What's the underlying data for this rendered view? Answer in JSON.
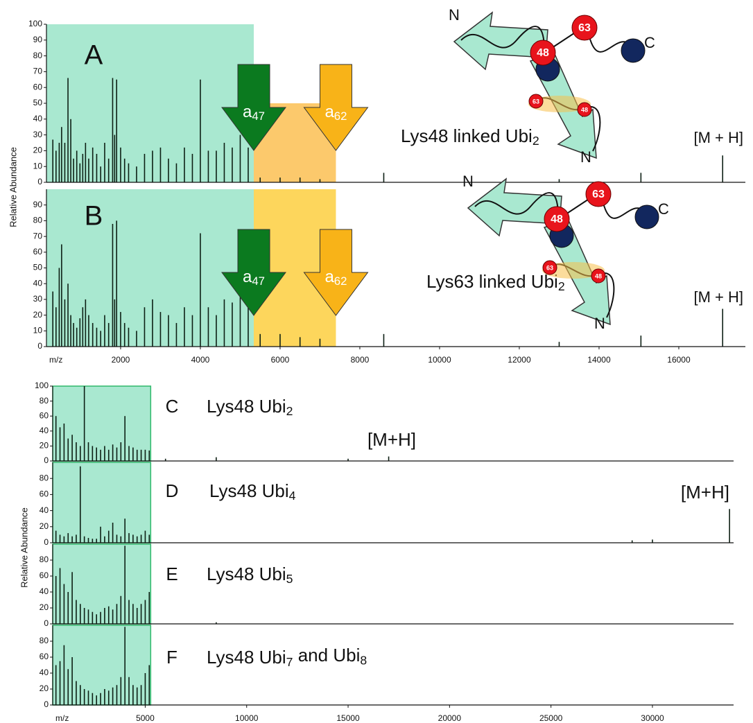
{
  "chart_data": [
    {
      "type": "stem",
      "panel": "A",
      "ylabel": "Relative Abundance",
      "title": [
        "Lys48 linked Ubi",
        "2"
      ],
      "peak_label": "[M + H]",
      "xlim": [
        140,
        17670
      ],
      "ylim": [
        0,
        100
      ],
      "yticks": [
        0,
        10,
        20,
        30,
        40,
        50,
        60,
        70,
        80,
        90,
        100
      ],
      "regions": [
        {
          "x": [
            140,
            5340
          ],
          "top": 100,
          "color": "#a9e8d0"
        },
        {
          "x": [
            5340,
            7400
          ],
          "top": 50,
          "color": "#fcc96c"
        }
      ],
      "arrows": [
        {
          "label": "a",
          "subscript": "47",
          "color": "#0b7a1f"
        },
        {
          "label": "a",
          "subscript": "62",
          "color": "#f8b318"
        }
      ],
      "diagram_labels": [
        "N",
        "48",
        "63",
        "C",
        "63",
        "48",
        "N"
      ],
      "color": "#0d1f14",
      "x": [
        300,
        380,
        460,
        520,
        600,
        680,
        750,
        820,
        900,
        980,
        1050,
        1120,
        1200,
        1300,
        1400,
        1500,
        1600,
        1700,
        1800,
        1850,
        1900,
        2000,
        2100,
        2200,
        2400,
        2600,
        2800,
        3000,
        3200,
        3400,
        3600,
        3800,
        4000,
        4200,
        4400,
        4600,
        4800,
        5000,
        5200,
        5500,
        6000,
        6500,
        7000,
        8600,
        13000,
        15050,
        17100
      ],
      "values": [
        27,
        20,
        25,
        35,
        25,
        66,
        40,
        15,
        20,
        12,
        18,
        25,
        15,
        22,
        18,
        10,
        25,
        15,
        66,
        30,
        65,
        22,
        15,
        12,
        10,
        18,
        20,
        22,
        15,
        12,
        22,
        18,
        65,
        20,
        20,
        25,
        22,
        30,
        22,
        3,
        3,
        3,
        2,
        6,
        2,
        6,
        17
      ]
    },
    {
      "type": "stem",
      "panel": "B",
      "title": [
        "Lys63 linked Ubi",
        "2"
      ],
      "peak_label": "[M + H]",
      "xlim": [
        140,
        17670
      ],
      "ylim": [
        0,
        100
      ],
      "yticks": [
        0,
        10,
        20,
        30,
        40,
        50,
        60,
        70,
        80,
        90
      ],
      "xticks": [
        2000,
        4000,
        6000,
        8000,
        10000,
        12000,
        14000,
        16000
      ],
      "xlabel": "m/z",
      "regions": [
        {
          "x": [
            140,
            5340
          ],
          "top": 100,
          "color": "#a9e8d0"
        },
        {
          "x": [
            5340,
            7400
          ],
          "top": 100,
          "color": "#fdd65c"
        }
      ],
      "arrows": [
        {
          "label": "a",
          "subscript": "47",
          "color": "#0b7a1f"
        },
        {
          "label": "a",
          "subscript": "62",
          "color": "#f8b318"
        }
      ],
      "diagram_labels": [
        "N",
        "48",
        "63",
        "C",
        "63",
        "48",
        "N"
      ],
      "color": "#0d1f14",
      "x": [
        300,
        380,
        460,
        520,
        600,
        680,
        750,
        820,
        900,
        980,
        1050,
        1120,
        1200,
        1300,
        1400,
        1500,
        1600,
        1700,
        1800,
        1850,
        1900,
        2000,
        2100,
        2200,
        2400,
        2600,
        2800,
        3000,
        3200,
        3400,
        3600,
        3800,
        4000,
        4200,
        4400,
        4600,
        4800,
        5000,
        5200,
        5500,
        6000,
        6500,
        7000,
        8600,
        13000,
        15050,
        17100
      ],
      "values": [
        35,
        25,
        50,
        65,
        30,
        40,
        20,
        15,
        12,
        18,
        25,
        30,
        20,
        15,
        12,
        10,
        20,
        15,
        78,
        30,
        80,
        22,
        15,
        12,
        10,
        25,
        30,
        22,
        20,
        15,
        25,
        20,
        72,
        25,
        20,
        30,
        28,
        40,
        30,
        8,
        8,
        6,
        5,
        8,
        3,
        7,
        24
      ]
    },
    {
      "type": "stem",
      "panel": "C",
      "ylabel": "Relative Abundance",
      "title": [
        "Lys48 Ubi",
        "2"
      ],
      "peak_label": "[M+H]",
      "xlim": [
        440,
        34000
      ],
      "ylim": [
        0,
        100
      ],
      "yticks": [
        0,
        20,
        40,
        60,
        80,
        100
      ],
      "regions": [
        {
          "x": [
            440,
            5270
          ],
          "top": 100,
          "color": "#a9e8d0",
          "stroke": "#2fb86a"
        }
      ],
      "color": "#0d1f14",
      "x": [
        600,
        800,
        1000,
        1200,
        1400,
        1600,
        1800,
        2000,
        2200,
        2400,
        2600,
        2800,
        3000,
        3200,
        3400,
        3600,
        3800,
        4000,
        4200,
        4400,
        4600,
        4800,
        5000,
        5200,
        6000,
        8500,
        15000,
        17000
      ],
      "values": [
        60,
        45,
        50,
        30,
        35,
        25,
        20,
        100,
        25,
        20,
        18,
        15,
        20,
        15,
        22,
        18,
        25,
        60,
        20,
        18,
        15,
        15,
        15,
        14,
        3,
        5,
        3,
        6
      ]
    },
    {
      "type": "stem",
      "panel": "D",
      "title": [
        "Lys48 Ubi",
        "4"
      ],
      "peak_label": "[M+H]",
      "xlim": [
        440,
        34000
      ],
      "ylim": [
        0,
        100
      ],
      "yticks": [
        0,
        20,
        40,
        60,
        80
      ],
      "regions": [
        {
          "x": [
            440,
            5270
          ],
          "top": 100,
          "color": "#a9e8d0",
          "stroke": "#2fb86a"
        }
      ],
      "color": "#0d1f14",
      "x": [
        600,
        800,
        1000,
        1200,
        1400,
        1600,
        1800,
        2000,
        2200,
        2400,
        2600,
        2800,
        3000,
        3200,
        3400,
        3600,
        3800,
        4000,
        4200,
        4400,
        4600,
        4800,
        5000,
        5200,
        29000,
        30000,
        33800
      ],
      "values": [
        15,
        10,
        8,
        12,
        8,
        10,
        95,
        8,
        6,
        5,
        5,
        20,
        8,
        15,
        25,
        10,
        8,
        30,
        12,
        10,
        8,
        10,
        15,
        10,
        3,
        4,
        42
      ]
    },
    {
      "type": "stem",
      "panel": "E",
      "title": [
        "Lys48 Ubi",
        "5"
      ],
      "xlim": [
        440,
        34000
      ],
      "ylim": [
        0,
        100
      ],
      "yticks": [
        0,
        20,
        40,
        60,
        80
      ],
      "regions": [
        {
          "x": [
            440,
            5270
          ],
          "top": 100,
          "color": "#a9e8d0",
          "stroke": "#2fb86a"
        }
      ],
      "color": "#0d1f14",
      "x": [
        600,
        800,
        1000,
        1200,
        1400,
        1600,
        1800,
        2000,
        2200,
        2400,
        2600,
        2800,
        3000,
        3200,
        3400,
        3600,
        3800,
        4000,
        4200,
        4400,
        4600,
        4800,
        5000,
        5200,
        8500
      ],
      "values": [
        60,
        70,
        50,
        40,
        65,
        30,
        25,
        20,
        18,
        15,
        12,
        15,
        20,
        22,
        18,
        25,
        35,
        98,
        30,
        25,
        20,
        25,
        30,
        40,
        2
      ]
    },
    {
      "type": "stem",
      "panel": "F",
      "title": [
        "Lys48 Ubi",
        "7",
        " and Ubi",
        "8"
      ],
      "xlim": [
        440,
        34000
      ],
      "ylim": [
        0,
        100
      ],
      "yticks": [
        0,
        20,
        40,
        60,
        80
      ],
      "xticks": [
        5000,
        10000,
        15000,
        20000,
        25000,
        30000
      ],
      "xlabel": "m/z",
      "regions": [
        {
          "x": [
            440,
            5270
          ],
          "top": 100,
          "color": "#a9e8d0",
          "stroke": "#2fb86a"
        }
      ],
      "color": "#0d1f14",
      "x": [
        600,
        800,
        1000,
        1200,
        1400,
        1600,
        1800,
        2000,
        2200,
        2400,
        2600,
        2800,
        3000,
        3200,
        3400,
        3600,
        3800,
        4000,
        4200,
        4400,
        4600,
        4800,
        5000,
        5200
      ],
      "values": [
        50,
        55,
        75,
        45,
        60,
        30,
        25,
        20,
        18,
        15,
        12,
        15,
        20,
        18,
        22,
        25,
        35,
        98,
        35,
        25,
        22,
        25,
        40,
        50
      ]
    }
  ]
}
